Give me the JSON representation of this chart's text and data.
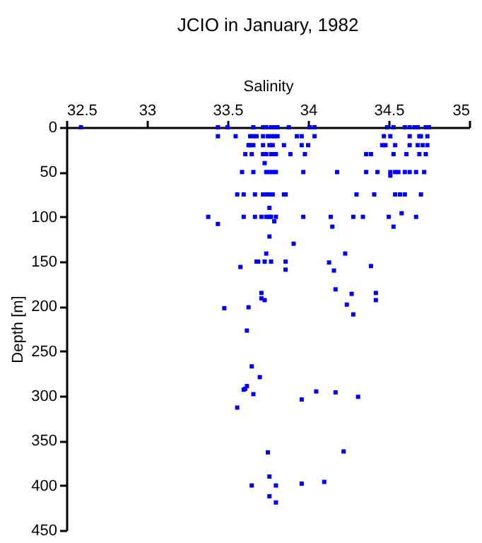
{
  "chart_data": {
    "type": "scatter",
    "title": "JCIO in January, 1982",
    "xlabel": "Salinity",
    "ylabel": "Depth [m]",
    "xlim": [
      32.5,
      35
    ],
    "xticks": [
      32.5,
      33,
      33.5,
      34,
      34.5,
      35
    ],
    "ylim": [
      450,
      0
    ],
    "yticks": [
      0,
      50,
      100,
      150,
      200,
      250,
      300,
      350,
      400,
      450
    ],
    "marker": "square",
    "grid": false,
    "series": [
      {
        "color": "#0000ff",
        "x": [
          32.59,
          33.44,
          33.5,
          33.66,
          33.72,
          33.74,
          33.77,
          33.79,
          33.81,
          33.88,
          34.01,
          34.04,
          34.49,
          34.53,
          34.6,
          34.63,
          34.66,
          34.68,
          34.73,
          34.75,
          33.44,
          33.55,
          33.64,
          33.66,
          33.68,
          33.72,
          33.75,
          33.77,
          33.79,
          33.81,
          33.93,
          33.96,
          34.04,
          34.47,
          34.51,
          34.63,
          34.69,
          34.7,
          34.74,
          33.63,
          33.64,
          33.66,
          33.72,
          33.76,
          33.78,
          33.85,
          33.96,
          34.0,
          34.46,
          34.48,
          34.54,
          34.63,
          34.68,
          34.71,
          34.74,
          33.61,
          33.65,
          33.72,
          33.74,
          33.77,
          33.79,
          33.8,
          33.89,
          33.98,
          34.36,
          34.39,
          34.53,
          34.61,
          34.69,
          34.73,
          33.73,
          33.59,
          33.66,
          33.74,
          33.76,
          33.78,
          33.8,
          33.97,
          34.18,
          34.36,
          34.43,
          34.51,
          34.54,
          34.56,
          34.6,
          34.63,
          34.67,
          34.72,
          34.51,
          33.56,
          33.6,
          33.67,
          33.72,
          33.74,
          33.76,
          33.78,
          33.85,
          33.86,
          34.3,
          34.41,
          34.54,
          34.57,
          34.6,
          34.7,
          33.76,
          34.58,
          33.38,
          33.6,
          33.67,
          33.71,
          33.74,
          33.76,
          33.77,
          33.8,
          33.97,
          34.14,
          34.28,
          34.34,
          34.5,
          34.67,
          33.79,
          33.44,
          34.15,
          34.53,
          33.76,
          33.91,
          33.74,
          34.23,
          33.68,
          33.69,
          33.73,
          33.77,
          33.86,
          34.13,
          34.39,
          33.58,
          33.86,
          34.16,
          34.17,
          33.71,
          34.42,
          34.27,
          33.71,
          33.73,
          34.42,
          34.24,
          33.63,
          33.48,
          34.28,
          33.62,
          33.65,
          33.7,
          33.62,
          33.61,
          33.6,
          33.66,
          33.56,
          33.96,
          34.05,
          34.17,
          34.31,
          33.75,
          34.22,
          33.76,
          33.65,
          33.8,
          33.96,
          34.1,
          33.76,
          33.8
        ],
        "values": [
          0,
          0,
          0,
          0,
          0,
          0,
          0,
          0,
          0,
          0,
          0,
          0,
          0,
          0,
          0,
          0,
          0,
          0,
          0,
          0,
          10,
          10,
          10,
          10,
          10,
          10,
          10,
          10,
          10,
          10,
          10,
          10,
          10,
          10,
          10,
          10,
          10,
          10,
          10,
          20,
          20,
          20,
          20,
          20,
          20,
          20,
          20,
          20,
          20,
          20,
          20,
          20,
          20,
          20,
          20,
          30,
          30,
          30,
          30,
          30,
          30,
          30,
          30,
          30,
          30,
          30,
          30,
          30,
          30,
          30,
          40,
          50,
          50,
          50,
          50,
          50,
          50,
          50,
          50,
          50,
          50,
          50,
          50,
          50,
          50,
          50,
          50,
          50,
          54,
          75,
          75,
          75,
          75,
          75,
          75,
          75,
          75,
          75,
          75,
          75,
          75,
          75,
          75,
          75,
          90,
          96,
          100,
          100,
          100,
          100,
          100,
          100,
          100,
          100,
          100,
          100,
          100,
          100,
          100,
          100,
          105,
          108,
          111,
          111,
          122,
          130,
          141,
          141,
          150,
          150,
          150,
          150,
          150,
          151,
          155,
          156,
          159,
          160,
          181,
          185,
          185,
          186,
          191,
          193,
          193,
          198,
          201,
          202,
          209,
          227,
          267,
          279,
          289,
          292,
          293,
          298,
          313,
          304,
          295,
          296,
          301,
          363,
          362,
          390,
          400,
          400,
          398,
          396,
          412,
          419
        ]
      }
    ]
  }
}
